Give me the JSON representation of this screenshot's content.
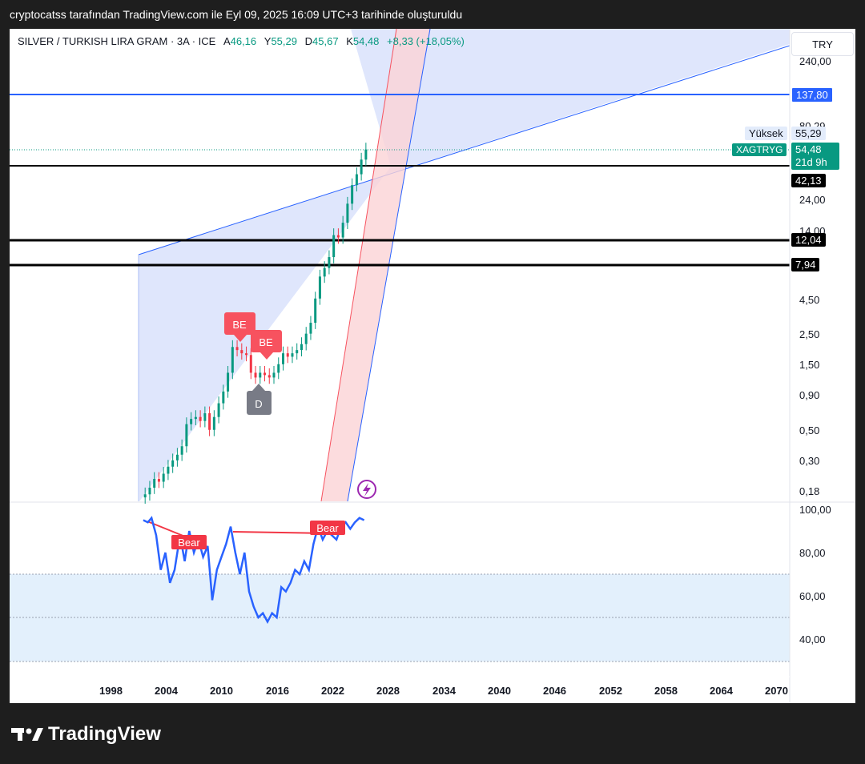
{
  "header": {
    "caption": "cryptocatss tarafından TradingView.com ile Eyl 09, 2025 16:09 UTC+3 tarihinde oluşturuldu"
  },
  "legend": {
    "symbol": "SILVER / TURKISH LIRA GRAM · 3A · ICE",
    "open_label": "A",
    "open": "46,16",
    "high_label": "Y",
    "high": "55,29",
    "low_label": "D",
    "low": "45,67",
    "close_label": "K",
    "close": "54,48",
    "change": "+8,33 (+18,05%)"
  },
  "price_axis": {
    "currency": "TRY",
    "ticks": [
      "240,00",
      "80,29",
      "24,00",
      "14,00",
      "4,50",
      "2,50",
      "1,50",
      "0,90",
      "0,50",
      "0,30",
      "0,18"
    ],
    "level_tags": [
      {
        "value": "137,80",
        "style": "blue"
      },
      {
        "value": "42,13",
        "style": "black"
      },
      {
        "value": "12,04",
        "style": "black"
      },
      {
        "value": "7,94",
        "style": "black"
      }
    ],
    "high_label": "Yüksek",
    "high_value": "55,29",
    "symbol_tag": "XAGTRYG",
    "last_price": "54,48",
    "countdown": "21d 9h"
  },
  "rsi_axis": {
    "ticks": [
      "100,00",
      "80,00",
      "60,00",
      "40,00"
    ]
  },
  "time_axis": {
    "ticks": [
      "1998",
      "2004",
      "2010",
      "2016",
      "2022",
      "2028",
      "2034",
      "2040",
      "2046",
      "2052",
      "2058",
      "2064",
      "2070"
    ]
  },
  "markers": [
    {
      "label": "BE",
      "kind": "bearish"
    },
    {
      "label": "BE",
      "kind": "bearish"
    },
    {
      "label": "D",
      "kind": "divergence"
    }
  ],
  "rsi_markers": [
    {
      "label": "Bear"
    },
    {
      "label": "Bear"
    }
  ],
  "colors": {
    "up": "#089981",
    "down": "#f23645",
    "accent": "#2962ff",
    "channel_fill": "#d9e2fb",
    "red_channel": "#fbd3d6",
    "rsi_line": "#2962ff",
    "rsi_band": "#e3f0fc"
  },
  "footer": {
    "brand": "TradingView"
  },
  "chart_data": {
    "type": "candlestick",
    "scale": "log",
    "x_range": [
      1998,
      2070
    ],
    "series": [
      {
        "name": "Price",
        "points": [
          [
            2001.5,
            0.17
          ],
          [
            2002,
            0.19
          ],
          [
            2002.5,
            0.22
          ],
          [
            2003,
            0.21
          ],
          [
            2003.5,
            0.24
          ],
          [
            2004,
            0.27
          ],
          [
            2004.5,
            0.3
          ],
          [
            2005,
            0.33
          ],
          [
            2005.5,
            0.38
          ],
          [
            2006,
            0.55
          ],
          [
            2006.5,
            0.6
          ],
          [
            2007,
            0.62
          ],
          [
            2007.5,
            0.58
          ],
          [
            2008,
            0.66
          ],
          [
            2008.5,
            0.5
          ],
          [
            2009,
            0.62
          ],
          [
            2009.5,
            0.78
          ],
          [
            2010,
            0.95
          ],
          [
            2010.5,
            1.3
          ],
          [
            2011,
            2.0
          ],
          [
            2011.5,
            1.9
          ],
          [
            2012,
            1.8
          ],
          [
            2012.5,
            1.75
          ],
          [
            2013,
            1.3
          ],
          [
            2013.5,
            1.2
          ],
          [
            2014,
            1.3
          ],
          [
            2014.5,
            1.25
          ],
          [
            2015,
            1.2
          ],
          [
            2015.5,
            1.3
          ],
          [
            2016,
            1.5
          ],
          [
            2016.5,
            1.8
          ],
          [
            2017,
            1.7
          ],
          [
            2017.5,
            1.8
          ],
          [
            2018,
            1.9
          ],
          [
            2018.5,
            2.1
          ],
          [
            2019,
            2.5
          ],
          [
            2019.5,
            3.0
          ],
          [
            2020,
            4.5
          ],
          [
            2020.5,
            6.5
          ],
          [
            2021,
            7.5
          ],
          [
            2021.5,
            9.0
          ],
          [
            2022,
            13.0
          ],
          [
            2022.5,
            12.5
          ],
          [
            2023,
            16.0
          ],
          [
            2023.5,
            22.0
          ],
          [
            2024,
            30.0
          ],
          [
            2024.5,
            36.0
          ],
          [
            2025,
            46.0
          ],
          [
            2025.5,
            54.48
          ]
        ]
      }
    ],
    "rsi": [
      [
        2001.3,
        95
      ],
      [
        2001.8,
        94
      ],
      [
        2002.2,
        96
      ],
      [
        2002.7,
        88
      ],
      [
        2003.2,
        72
      ],
      [
        2003.7,
        80
      ],
      [
        2004.2,
        66
      ],
      [
        2004.7,
        72
      ],
      [
        2005.3,
        88
      ],
      [
        2005.8,
        76
      ],
      [
        2006.3,
        90
      ],
      [
        2006.8,
        80
      ],
      [
        2007.3,
        86
      ],
      [
        2007.8,
        78
      ],
      [
        2008.3,
        83
      ],
      [
        2008.8,
        58
      ],
      [
        2009.3,
        72
      ],
      [
        2009.8,
        78
      ],
      [
        2010.3,
        84
      ],
      [
        2010.8,
        92
      ],
      [
        2011.3,
        80
      ],
      [
        2011.8,
        70
      ],
      [
        2012.3,
        80
      ],
      [
        2012.8,
        62
      ],
      [
        2013.3,
        55
      ],
      [
        2013.8,
        50
      ],
      [
        2014.3,
        52
      ],
      [
        2014.8,
        48
      ],
      [
        2015.3,
        52
      ],
      [
        2015.8,
        50
      ],
      [
        2016.3,
        64
      ],
      [
        2016.8,
        62
      ],
      [
        2017.3,
        66
      ],
      [
        2017.8,
        72
      ],
      [
        2018.3,
        70
      ],
      [
        2018.8,
        76
      ],
      [
        2019.3,
        72
      ],
      [
        2019.8,
        84
      ],
      [
        2020.3,
        92
      ],
      [
        2020.8,
        86
      ],
      [
        2021.3,
        90
      ],
      [
        2021.8,
        88
      ],
      [
        2022.3,
        86
      ],
      [
        2022.8,
        92
      ],
      [
        2023.3,
        94
      ],
      [
        2023.8,
        91
      ],
      [
        2024.3,
        94
      ],
      [
        2024.8,
        96
      ],
      [
        2025.3,
        95
      ]
    ],
    "horizontal_levels": [
      137.8,
      42.13,
      12.04,
      7.94
    ],
    "rsi_bands": [
      70,
      50,
      30
    ],
    "rsi_range": [
      30,
      100
    ]
  }
}
